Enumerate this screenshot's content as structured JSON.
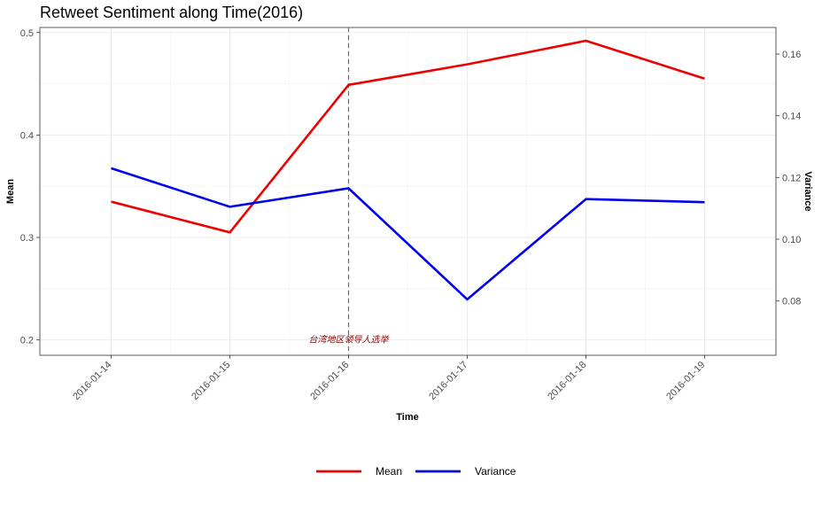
{
  "chart_data": {
    "type": "line",
    "title": "Retweet Sentiment along Time(2016)",
    "xlabel": "Time",
    "ylabel": "Mean",
    "y2label": "Variance",
    "categories": [
      "2016-01-14",
      "2016-01-15",
      "2016-01-16",
      "2016-01-17",
      "2016-01-18",
      "2016-01-19"
    ],
    "ylim": [
      0.185,
      0.505
    ],
    "y2lim": [
      0.0624,
      0.1686
    ],
    "yticks": [
      "0.2",
      "0.3",
      "0.4",
      "0.5"
    ],
    "y2ticks": [
      "0.08",
      "0.10",
      "0.12",
      "0.14",
      "0.16"
    ],
    "series": [
      {
        "name": "Mean",
        "axis": "left",
        "color": "#ee0000",
        "values": [
          0.335,
          0.305,
          0.449,
          0.469,
          0.492,
          0.455
        ]
      },
      {
        "name": "Variance",
        "axis": "right",
        "color": "#0000ee",
        "values": [
          0.123,
          0.1105,
          0.1165,
          0.0805,
          0.113,
          0.112
        ]
      }
    ],
    "vline": {
      "x": "2016-01-16",
      "style": "dashed",
      "color": "#666666"
    },
    "annotation": {
      "x": "2016-01-16",
      "y": 0.2,
      "text": "台湾地区领导人选举",
      "color": "#8b0000"
    },
    "legend_position": "bottom",
    "grid": true
  }
}
